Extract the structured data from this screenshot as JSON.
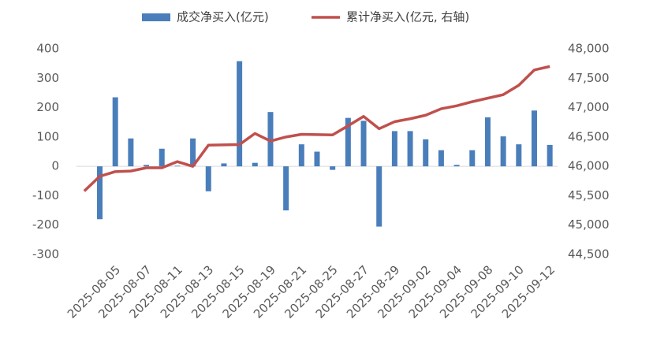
{
  "chart_data": {
    "type": "bar_line",
    "categories": [
      null,
      null,
      "2025-08-05",
      null,
      "2025-08-07",
      null,
      "2025-08-11",
      null,
      "2025-08-13",
      null,
      "2025-08-15",
      null,
      "2025-08-19",
      null,
      "2025-08-21",
      null,
      "2025-08-25",
      null,
      "2025-08-27",
      null,
      "2025-08-29",
      null,
      "2025-09-02",
      null,
      "2025-09-04",
      null,
      "2025-09-08",
      null,
      "2025-09-10",
      null,
      "2025-09-12"
    ],
    "series": [
      {
        "name": "成交净买入(亿元)",
        "color": "#4a7ebb",
        "type": "bar",
        "values": [
          null,
          -180,
          235,
          95,
          5,
          60,
          2,
          95,
          -85,
          10,
          358,
          12,
          185,
          -150,
          75,
          50,
          -12,
          165,
          155,
          -205,
          120,
          120,
          92,
          55,
          5,
          55,
          167,
          102,
          75,
          190,
          73
        ]
      },
      {
        "name": "累计净买入(亿元, 右轴)",
        "color": "#c0504d",
        "type": "line",
        "axis": "y2",
        "values": [
          45580,
          45830,
          45910,
          45920,
          45975,
          45975,
          46080,
          46000,
          46360,
          46365,
          46370,
          46560,
          46430,
          46500,
          46545,
          46540,
          46535,
          46690,
          46850,
          46640,
          46760,
          46810,
          46870,
          46980,
          47030,
          47100,
          47160,
          47220,
          47380,
          47640,
          47700
        ]
      }
    ],
    "ylim": [
      -300,
      400
    ],
    "yticks": [
      -300,
      -200,
      -100,
      0,
      100,
      200,
      300,
      400
    ],
    "y2lim": [
      44500,
      48000
    ],
    "y2ticks": [
      {
        "value": 44500,
        "label": "44,500"
      },
      {
        "value": 45000,
        "label": "45,000"
      },
      {
        "value": 45500,
        "label": "45,500"
      },
      {
        "value": 46000,
        "label": "46,000"
      },
      {
        "value": 46500,
        "label": "46,500"
      },
      {
        "value": 47000,
        "label": "47,000"
      },
      {
        "value": 47500,
        "label": "47,500"
      },
      {
        "value": 48000,
        "label": "48,000"
      }
    ],
    "legend": "top"
  }
}
